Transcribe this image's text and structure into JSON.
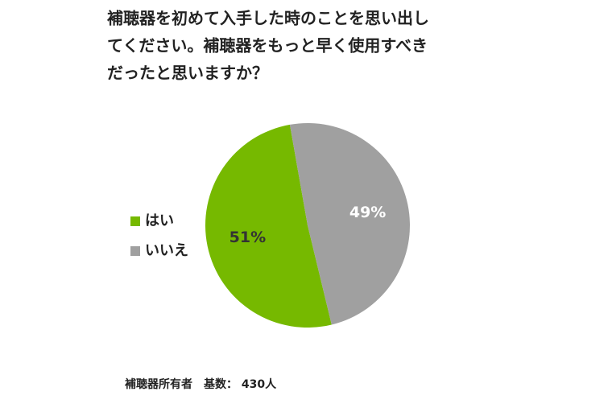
{
  "chart_data": {
    "type": "pie",
    "title": [
      "補聴器を初めて入手した時のことを思い出し",
      "てください。補聴器をもっと早く使用すべき",
      "だったと思いますか？"
    ],
    "categories": [
      "はい",
      "いいえ"
    ],
    "values": [
      51,
      49
    ],
    "value_labels": [
      "51%",
      "49%"
    ],
    "colors": [
      "#76b900",
      "#a0a0a0"
    ],
    "label_colors": [
      "#333333",
      "#ffffff"
    ],
    "startangle": -10,
    "counterclock": true,
    "legend": "left",
    "note": "補聴器所有者　基数： 430人"
  }
}
